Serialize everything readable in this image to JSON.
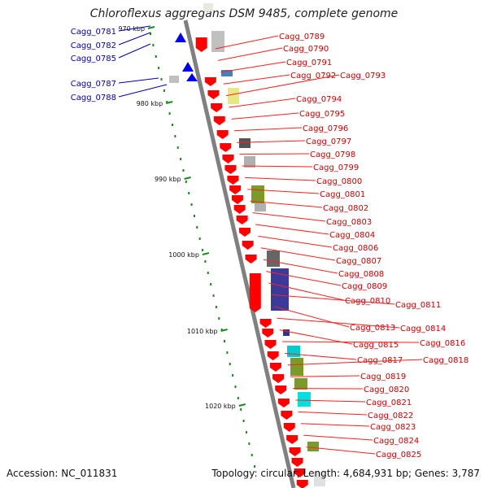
{
  "title": "Chloroflexus aggregans DSM 9485, complete genome",
  "footer": {
    "accession": "Accession: NC_011831",
    "stats": "Topology: circular; Length: 4,684,931 bp; Genes: 3,787"
  },
  "scale_labels": [
    "970 kbp",
    "980 kbp",
    "990 kbp",
    "1000 kbp",
    "1010 kbp",
    "1020 kbp"
  ],
  "colors": {
    "forward_gene": "#ff0000",
    "reverse_gene": "#0000ee",
    "forward_label": "#cc0000",
    "reverse_label": "#0000aa",
    "backbone": "#808080",
    "scale_dots": "#1a8a1a"
  },
  "left_genes": [
    "Cagg_0781",
    "Cagg_0782",
    "Cagg_0785",
    "Cagg_0787",
    "Cagg_0788"
  ],
  "right_genes": [
    "Cagg_0789",
    "Cagg_0790",
    "Cagg_0791",
    "Cagg_0792",
    "Cagg_0793",
    "Cagg_0794",
    "Cagg_0795",
    "Cagg_0796",
    "Cagg_0797",
    "Cagg_0798",
    "Cagg_0799",
    "Cagg_0800",
    "Cagg_0801",
    "Cagg_0802",
    "Cagg_0803",
    "Cagg_0804",
    "Cagg_0806",
    "Cagg_0807",
    "Cagg_0808",
    "Cagg_0809",
    "Cagg_0810",
    "Cagg_0811",
    "Cagg_0813",
    "Cagg_0814",
    "Cagg_0815",
    "Cagg_0816",
    "Cagg_0817",
    "Cagg_0818",
    "Cagg_0819",
    "Cagg_0820",
    "Cagg_0821",
    "Cagg_0822",
    "Cagg_0823",
    "Cagg_0824",
    "Cagg_0825"
  ]
}
